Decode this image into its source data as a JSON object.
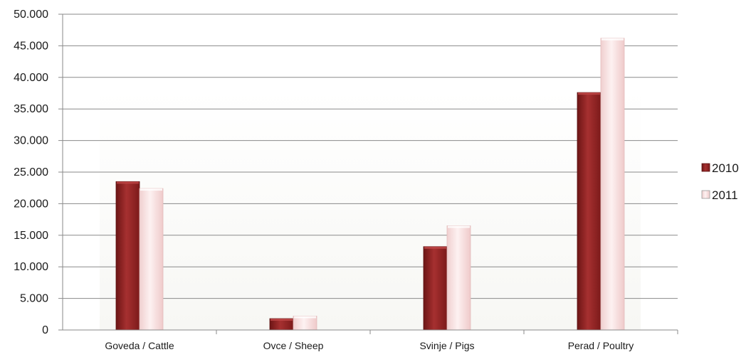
{
  "chart_data": {
    "type": "bar",
    "categories": [
      "Goveda / Cattle",
      "Ovce / Sheep",
      "Svinje / Pigs",
      "Perad / Poultry"
    ],
    "series": [
      {
        "name": "2010",
        "values": [
          23500,
          1800,
          13200,
          37600
        ],
        "color": "#8e2222"
      },
      {
        "name": "2011",
        "values": [
          22400,
          2200,
          16500,
          46200
        ],
        "color": "#f6dada"
      }
    ],
    "y_ticks": [
      "0",
      "5.000",
      "10.000",
      "15.000",
      "20.000",
      "25.000",
      "30.000",
      "35.000",
      "40.000",
      "45.000",
      "50.000"
    ],
    "ylim": [
      0,
      50000
    ],
    "grid": true,
    "legend_position": "right",
    "title": "",
    "xlabel": "",
    "ylabel": ""
  }
}
